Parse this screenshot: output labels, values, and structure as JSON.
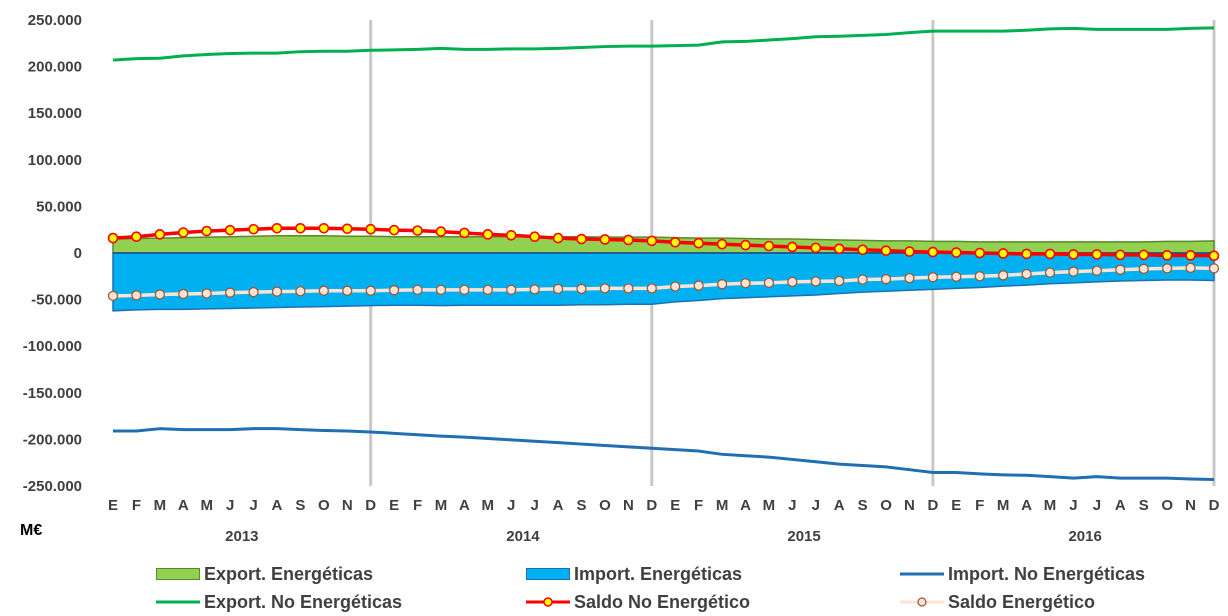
{
  "chart_data": {
    "type": "area",
    "unit_label": "M€",
    "ylim": [
      -250000,
      250000
    ],
    "y_ticks": [
      -250000,
      -200000,
      -150000,
      -100000,
      -50000,
      0,
      50000,
      100000,
      150000,
      200000,
      250000
    ],
    "y_tick_labels": [
      "-250.000",
      "-200.000",
      "-150.000",
      "-100.000",
      "-50.000",
      "0",
      "50.000",
      "100.000",
      "150.000",
      "200.000",
      "250.000"
    ],
    "month_labels": [
      "E",
      "F",
      "M",
      "A",
      "M",
      "J",
      "J",
      "A",
      "S",
      "O",
      "N",
      "D",
      "E",
      "F",
      "M",
      "A",
      "M",
      "J",
      "J",
      "A",
      "S",
      "O",
      "N",
      "D",
      "E",
      "F",
      "M",
      "A",
      "M",
      "J",
      "J",
      "A",
      "S",
      "O",
      "N",
      "D",
      "E",
      "F",
      "M",
      "A",
      "M",
      "J",
      "J",
      "A",
      "S",
      "O",
      "N",
      "D"
    ],
    "years": [
      "2013",
      "2014",
      "2015",
      "2016"
    ],
    "grid": "vertical lines at each December",
    "legend_position": "bottom",
    "series": [
      {
        "name": "Export. Energéticas",
        "kind": "area",
        "color": "#92d050",
        "border": "#5a8a2a",
        "values": [
          15000,
          15500,
          16000,
          16500,
          17000,
          17500,
          18000,
          18500,
          18500,
          18500,
          18000,
          18000,
          17500,
          17500,
          17500,
          17500,
          17500,
          17500,
          17500,
          17500,
          17500,
          17000,
          17000,
          17000,
          16500,
          16000,
          16000,
          15500,
          15000,
          15000,
          14500,
          14000,
          13500,
          13000,
          13000,
          12500,
          12500,
          12000,
          12000,
          12000,
          12000,
          12000,
          12000,
          12000,
          12000,
          12500,
          12500,
          13000
        ]
      },
      {
        "name": "Import. Energéticas",
        "kind": "area",
        "color": "#00b0f0",
        "border": "#1f6fb2",
        "values": [
          -62000,
          -61000,
          -60500,
          -60500,
          -60000,
          -59500,
          -59000,
          -58500,
          -58000,
          -57500,
          -57000,
          -56500,
          -56000,
          -56000,
          -56500,
          -56000,
          -56000,
          -56000,
          -56000,
          -56000,
          -55500,
          -55500,
          -55000,
          -55000,
          -52500,
          -51000,
          -49000,
          -48000,
          -47000,
          -46000,
          -45000,
          -43500,
          -42000,
          -41000,
          -40000,
          -39000,
          -38000,
          -37000,
          -35500,
          -34500,
          -33000,
          -32000,
          -31000,
          -30000,
          -29500,
          -29000,
          -29000,
          -29500
        ]
      },
      {
        "name": "Import. No Energéticas",
        "kind": "line",
        "color": "#1f6fb2",
        "values": [
          -191000,
          -191000,
          -188500,
          -189500,
          -189500,
          -189500,
          -188500,
          -188500,
          -189500,
          -190500,
          -191000,
          -192000,
          -193500,
          -195000,
          -196500,
          -197500,
          -199000,
          -200500,
          -202000,
          -203500,
          -205000,
          -206500,
          -208000,
          -209500,
          -211000,
          -212500,
          -216000,
          -217500,
          -219000,
          -221500,
          -224000,
          -226500,
          -228000,
          -229500,
          -232500,
          -235500,
          -235500,
          -237000,
          -238000,
          -238500,
          -240000,
          -241500,
          -240000,
          -241500,
          -241500,
          -241500,
          -242500,
          -243000
        ]
      },
      {
        "name": "Export. No Energéticas",
        "kind": "line",
        "color": "#00b050",
        "values": [
          207000,
          208500,
          209000,
          211500,
          213000,
          214000,
          214500,
          214500,
          216000,
          216500,
          216500,
          217500,
          218000,
          218500,
          219500,
          218500,
          218500,
          219000,
          219000,
          219500,
          220500,
          221500,
          222000,
          222000,
          222500,
          223000,
          226500,
          227000,
          228500,
          230000,
          232000,
          232500,
          233500,
          234500,
          236500,
          238000,
          238000,
          238000,
          238000,
          239000,
          240500,
          241000,
          240000,
          240000,
          240000,
          240000,
          241000,
          241500
        ]
      },
      {
        "name": "Saldo No Energético",
        "kind": "line-markers",
        "color": "#ff0000",
        "marker_fill": "#ffff00",
        "values": [
          16000,
          17500,
          20000,
          22000,
          23500,
          24500,
          25500,
          26500,
          26500,
          26500,
          26000,
          25500,
          24500,
          24000,
          23000,
          21500,
          20000,
          19000,
          17500,
          16000,
          15000,
          14500,
          14000,
          13000,
          11500,
          10500,
          9500,
          8500,
          7500,
          6500,
          5500,
          4500,
          3500,
          2500,
          1500,
          1000,
          500,
          0,
          -500,
          -1000,
          -1000,
          -1500,
          -1500,
          -2000,
          -2000,
          -2500,
          -2500,
          -3000
        ]
      },
      {
        "name": "Saldo Energético",
        "kind": "line-markers",
        "color": "#fbe3d6",
        "marker_fill": "#fbe3d6",
        "marker_stroke": "#a0522d",
        "values": [
          -46000,
          -45500,
          -44500,
          -44000,
          -43500,
          -42500,
          -42000,
          -41500,
          -41000,
          -40500,
          -40500,
          -40500,
          -40000,
          -39500,
          -39500,
          -39500,
          -39500,
          -39500,
          -39000,
          -38500,
          -38500,
          -38000,
          -38000,
          -38000,
          -36000,
          -35000,
          -33500,
          -32500,
          -32000,
          -31000,
          -30500,
          -30000,
          -28500,
          -28000,
          -27000,
          -26000,
          -25500,
          -25000,
          -24000,
          -22500,
          -21000,
          -20000,
          -19000,
          -18000,
          -17000,
          -16500,
          -16000,
          -16500
        ]
      }
    ]
  }
}
